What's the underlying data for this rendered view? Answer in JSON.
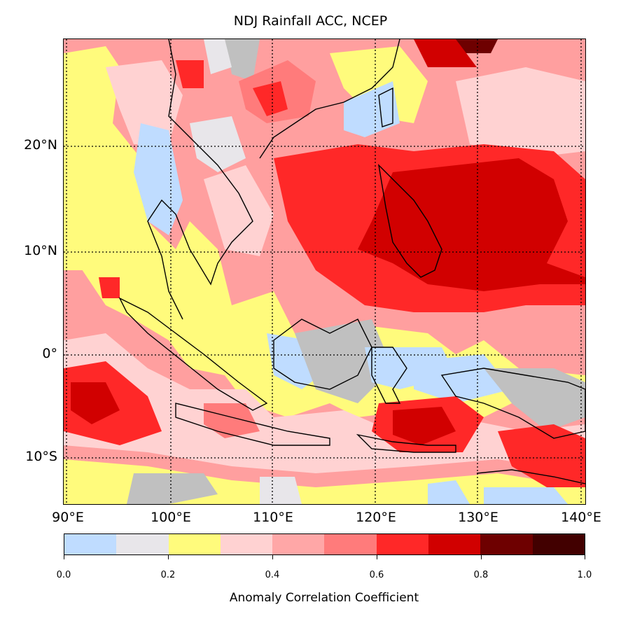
{
  "title": "NDJ Rainfall ACC, NCEP",
  "map": {
    "region": "Southeast Asia / Maritime Continent",
    "lat_labels": [
      "20°N",
      "10°N",
      "0°",
      "10°S"
    ],
    "lon_labels": [
      "90°E",
      "100°E",
      "110°E",
      "120°E",
      "130°E",
      "140°E"
    ]
  },
  "colorbar": {
    "label": "Anomaly Correlation Coefficient",
    "tick_labels": [
      "0.0",
      "0.2",
      "0.4",
      "0.6",
      "0.8",
      "1.0"
    ],
    "levels": [
      {
        "range": "0.0-0.1",
        "color": "#bfdcff"
      },
      {
        "range": "0.1-0.2",
        "color": "#e8e6ea"
      },
      {
        "range": "0.2-0.3",
        "color": "#fffb7c"
      },
      {
        "range": "0.3-0.4",
        "color": "#ffd2d2"
      },
      {
        "range": "0.4-0.5",
        "color": "#ffa7a7"
      },
      {
        "range": "0.5-0.6",
        "color": "#ff7b7b"
      },
      {
        "range": "0.6-0.7",
        "color": "#ff2828"
      },
      {
        "range": "0.7-0.8",
        "color": "#d10000"
      },
      {
        "range": "0.8-0.9",
        "color": "#6e0000"
      },
      {
        "range": "0.9-1.0",
        "color": "#420000"
      }
    ],
    "missing_color": "#c0c0c0"
  }
}
